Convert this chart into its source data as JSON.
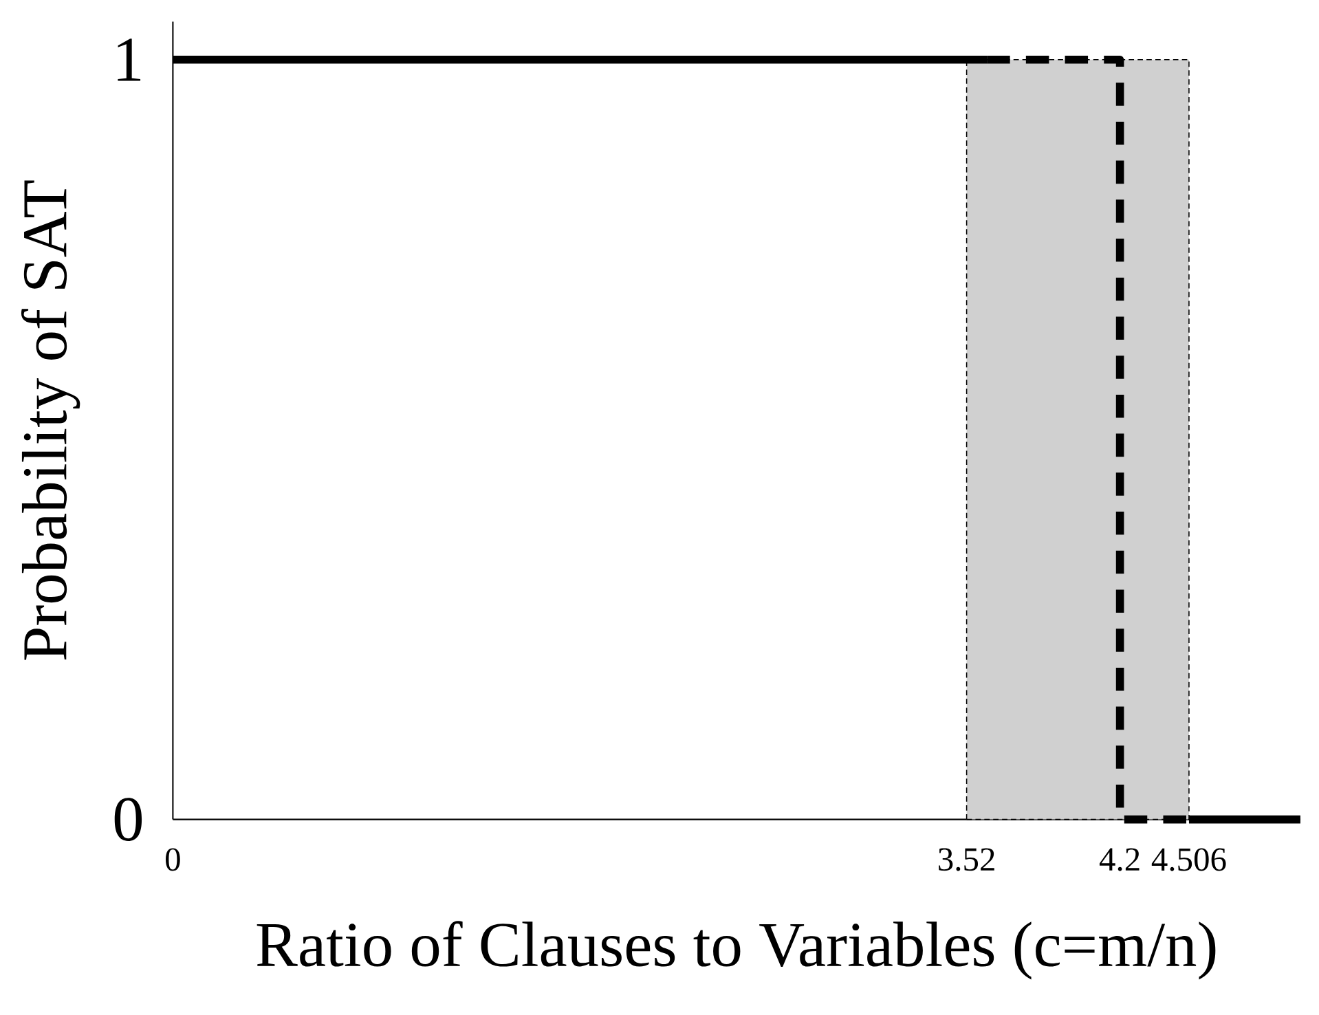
{
  "chart_data": {
    "type": "line",
    "xlabel": "Ratio of Clauses to Variables (c=m/n)",
    "ylabel": "Probability of SAT",
    "series": [
      {
        "color": "#000000",
        "line_style": "solid",
        "x": [
          0,
          3.61
        ],
        "values": [
          1,
          1
        ]
      },
      {
        "color": "#000000",
        "line_style": "dashed",
        "x": [
          3.61,
          4.2,
          4.2,
          4.506
        ],
        "values": [
          1,
          1,
          0,
          0
        ]
      },
      {
        "color": "#000000",
        "line_style": "solid",
        "x": [
          4.506,
          5.0
        ],
        "values": [
          0,
          0
        ]
      }
    ],
    "bands": [
      {
        "axis": "x",
        "from": 3.52,
        "to": 4.506,
        "color": "#d0d0d0"
      }
    ],
    "xlim": [
      0,
      5.0
    ],
    "ylim": [
      0,
      1.05
    ],
    "xticks": [
      0,
      3.52,
      4.2,
      4.506
    ],
    "yticks": [
      0,
      1
    ],
    "grid": false
  }
}
